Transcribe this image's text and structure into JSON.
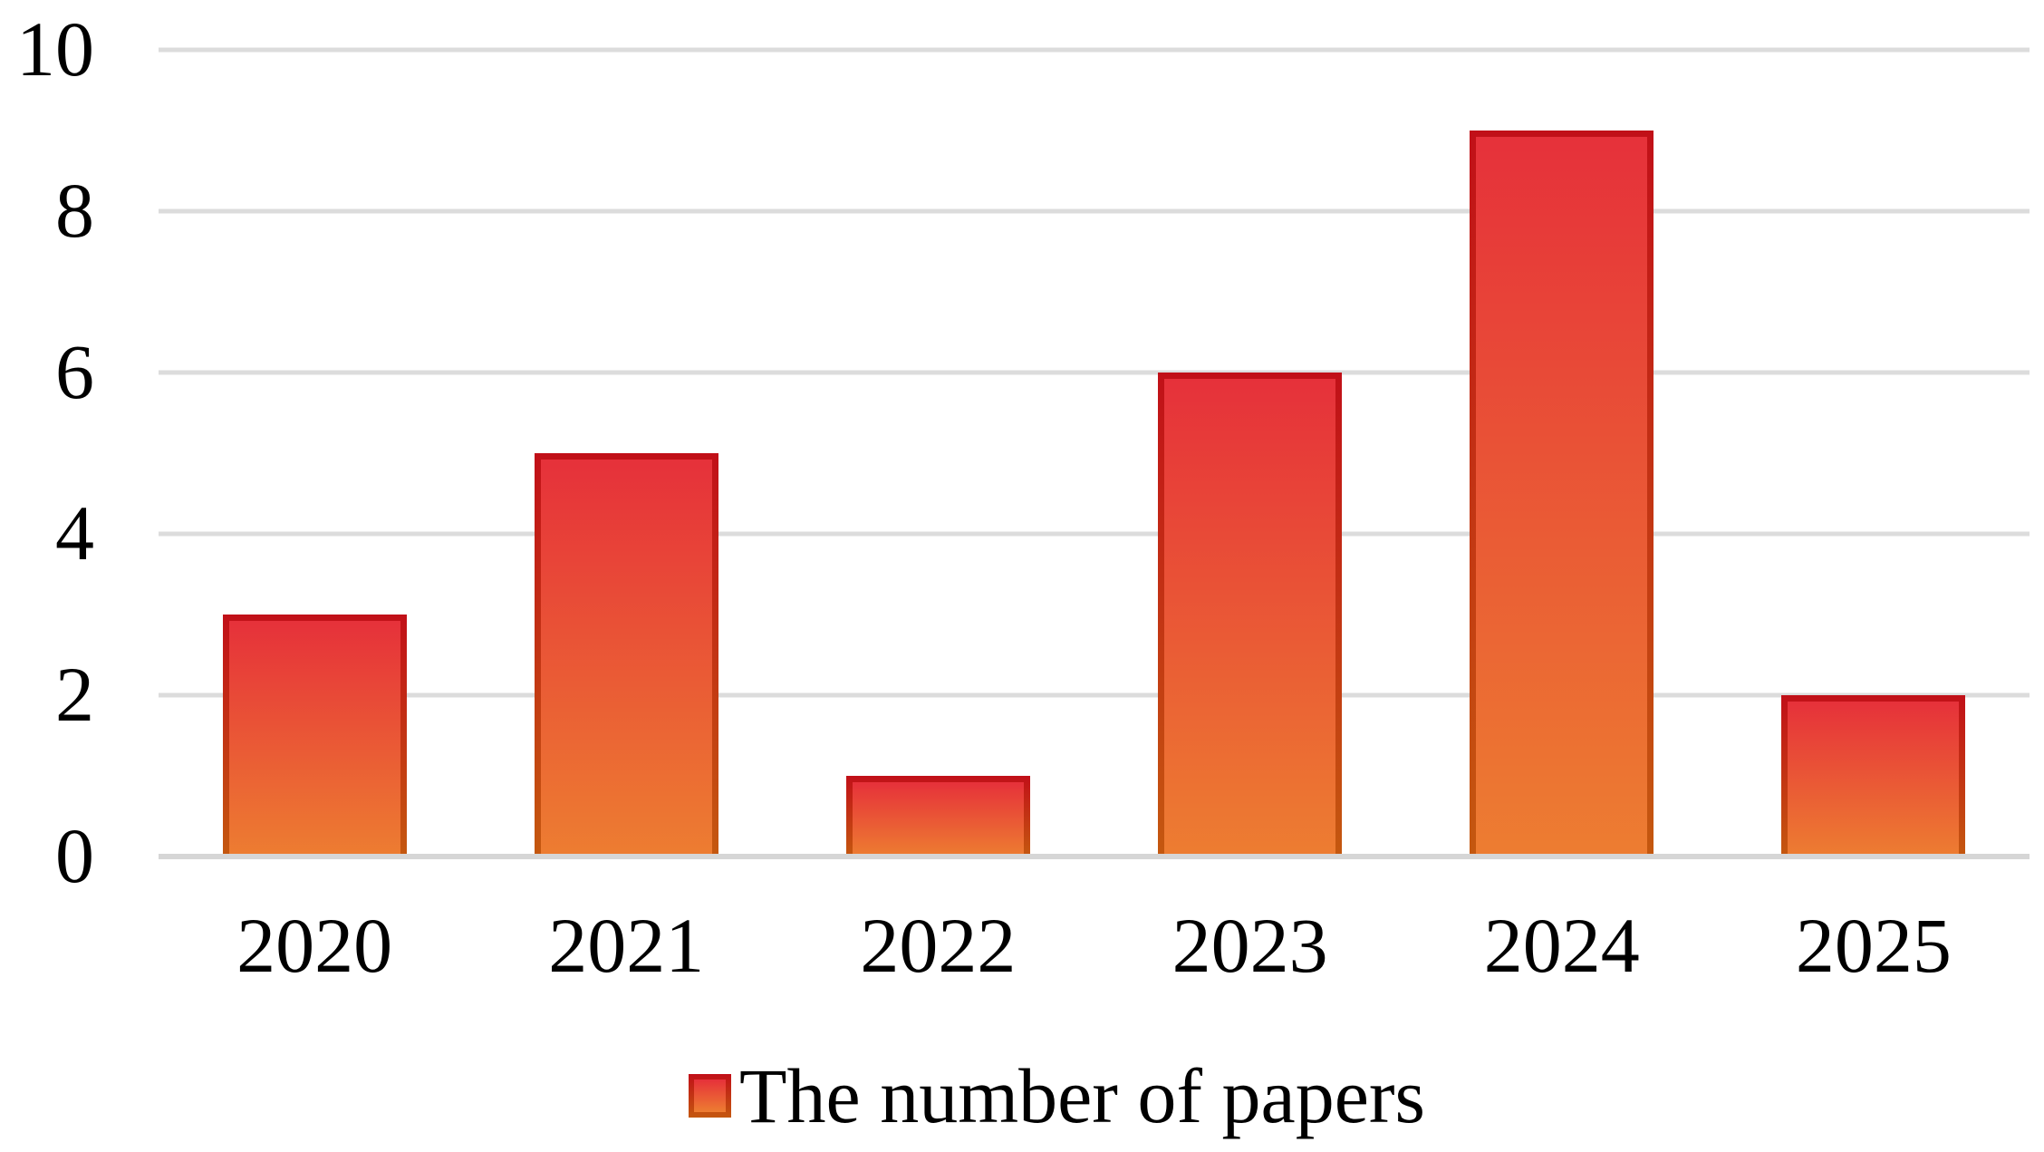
{
  "chart_data": {
    "type": "bar",
    "categories": [
      "2020",
      "2021",
      "2022",
      "2023",
      "2024",
      "2025"
    ],
    "values": [
      3,
      5,
      1,
      6,
      9,
      2
    ],
    "series_name": "The number of papers",
    "title": "",
    "xlabel": "",
    "ylabel": "",
    "ylim": [
      0,
      10
    ],
    "yticks": [
      0,
      2,
      4,
      6,
      8,
      10
    ],
    "grid": true,
    "legend_position": "bottom",
    "colors": {
      "bar_fill_top": "#e6313a",
      "bar_fill_bottom": "#ed7d31",
      "bar_border_top": "#c11018",
      "bar_border_bottom": "#c4580f",
      "gridline": "#dcdcdc",
      "axis_line": "#d6d6d6",
      "text": "#000000",
      "background": "#ffffff"
    }
  },
  "legend": {
    "label": "The number of papers"
  }
}
